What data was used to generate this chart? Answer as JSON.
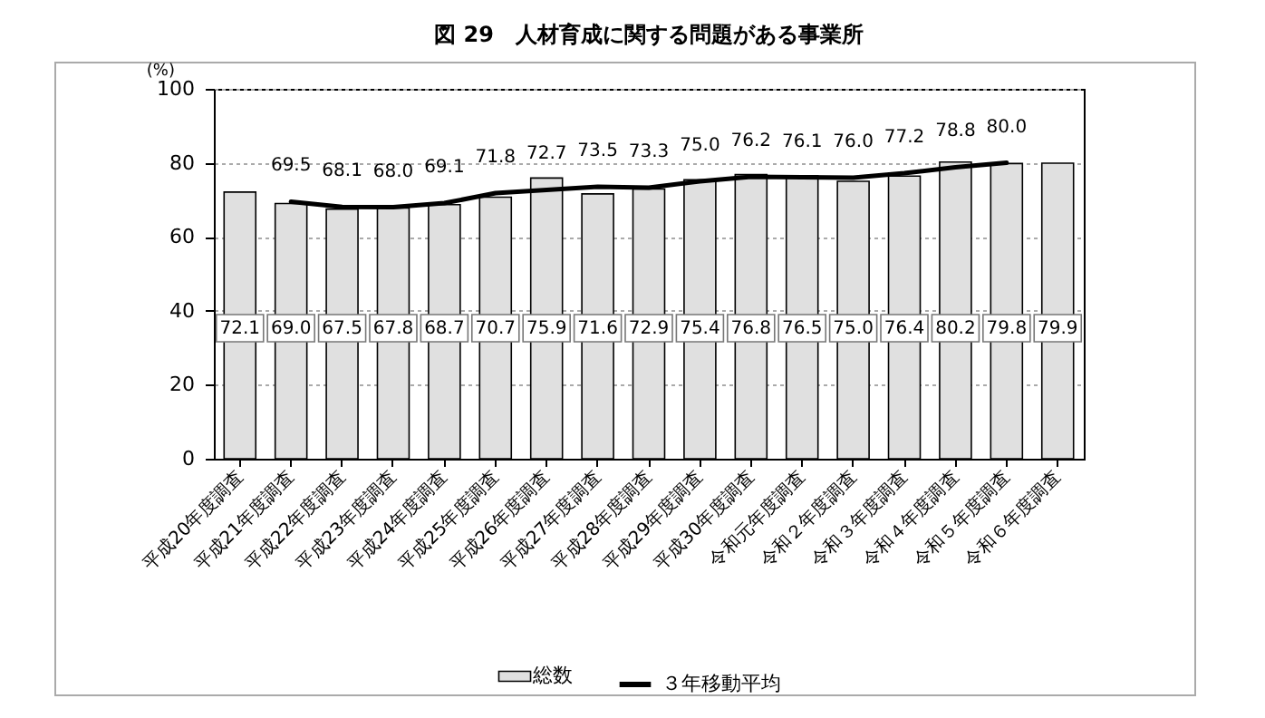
{
  "chart_data": {
    "type": "bar",
    "title": "図 29　人材育成に関する問題がある事業所",
    "ylabel": "(%)",
    "categories": [
      "平成20年度調査",
      "平成21年度調査",
      "平成22年度調査",
      "平成23年度調査",
      "平成24年度調査",
      "平成25年度調査",
      "平成26年度調査",
      "平成27年度調査",
      "平成28年度調査",
      "平成29年度調査",
      "平成30年度調査",
      "令和元年度調査",
      "令和２年度調査",
      "令和３年度調査",
      "令和４年度調査",
      "令和５年度調査",
      "令和６年度調査"
    ],
    "series": [
      {
        "name": "総数",
        "color": "#e0e0e0",
        "values": [
          72.1,
          69.0,
          67.5,
          67.8,
          68.7,
          70.7,
          75.9,
          71.6,
          72.9,
          75.4,
          76.8,
          76.5,
          75.0,
          76.4,
          80.2,
          79.8,
          79.9
        ],
        "value_labels": [
          "72.1",
          "69.0",
          "67.5",
          "67.8",
          "68.7",
          "70.7",
          "75.9",
          "71.6",
          "72.9",
          "75.4",
          "76.8",
          "76.5",
          "75.0",
          "76.4",
          "80.2",
          "79.8",
          "79.9"
        ]
      },
      {
        "name": "３年移動平均",
        "type": "line",
        "color": "#000000",
        "values": [
          null,
          69.5,
          68.1,
          68.0,
          69.1,
          71.8,
          72.7,
          73.5,
          73.3,
          75.0,
          76.2,
          76.1,
          76.0,
          77.2,
          78.8,
          80.0,
          null
        ],
        "value_labels": [
          null,
          "69.5",
          "68.1",
          "68.0",
          "69.1",
          "71.8",
          "72.7",
          "73.5",
          "73.3",
          "75.0",
          "76.2",
          "76.1",
          "76.0",
          "77.2",
          "78.8",
          "80.0",
          null
        ]
      }
    ],
    "ylim": [
      0,
      100
    ],
    "yticks": [
      0,
      20,
      40,
      60,
      80,
      100
    ],
    "grid": "y",
    "legend": "bottom",
    "marker": "none",
    "line_style": "solid"
  }
}
